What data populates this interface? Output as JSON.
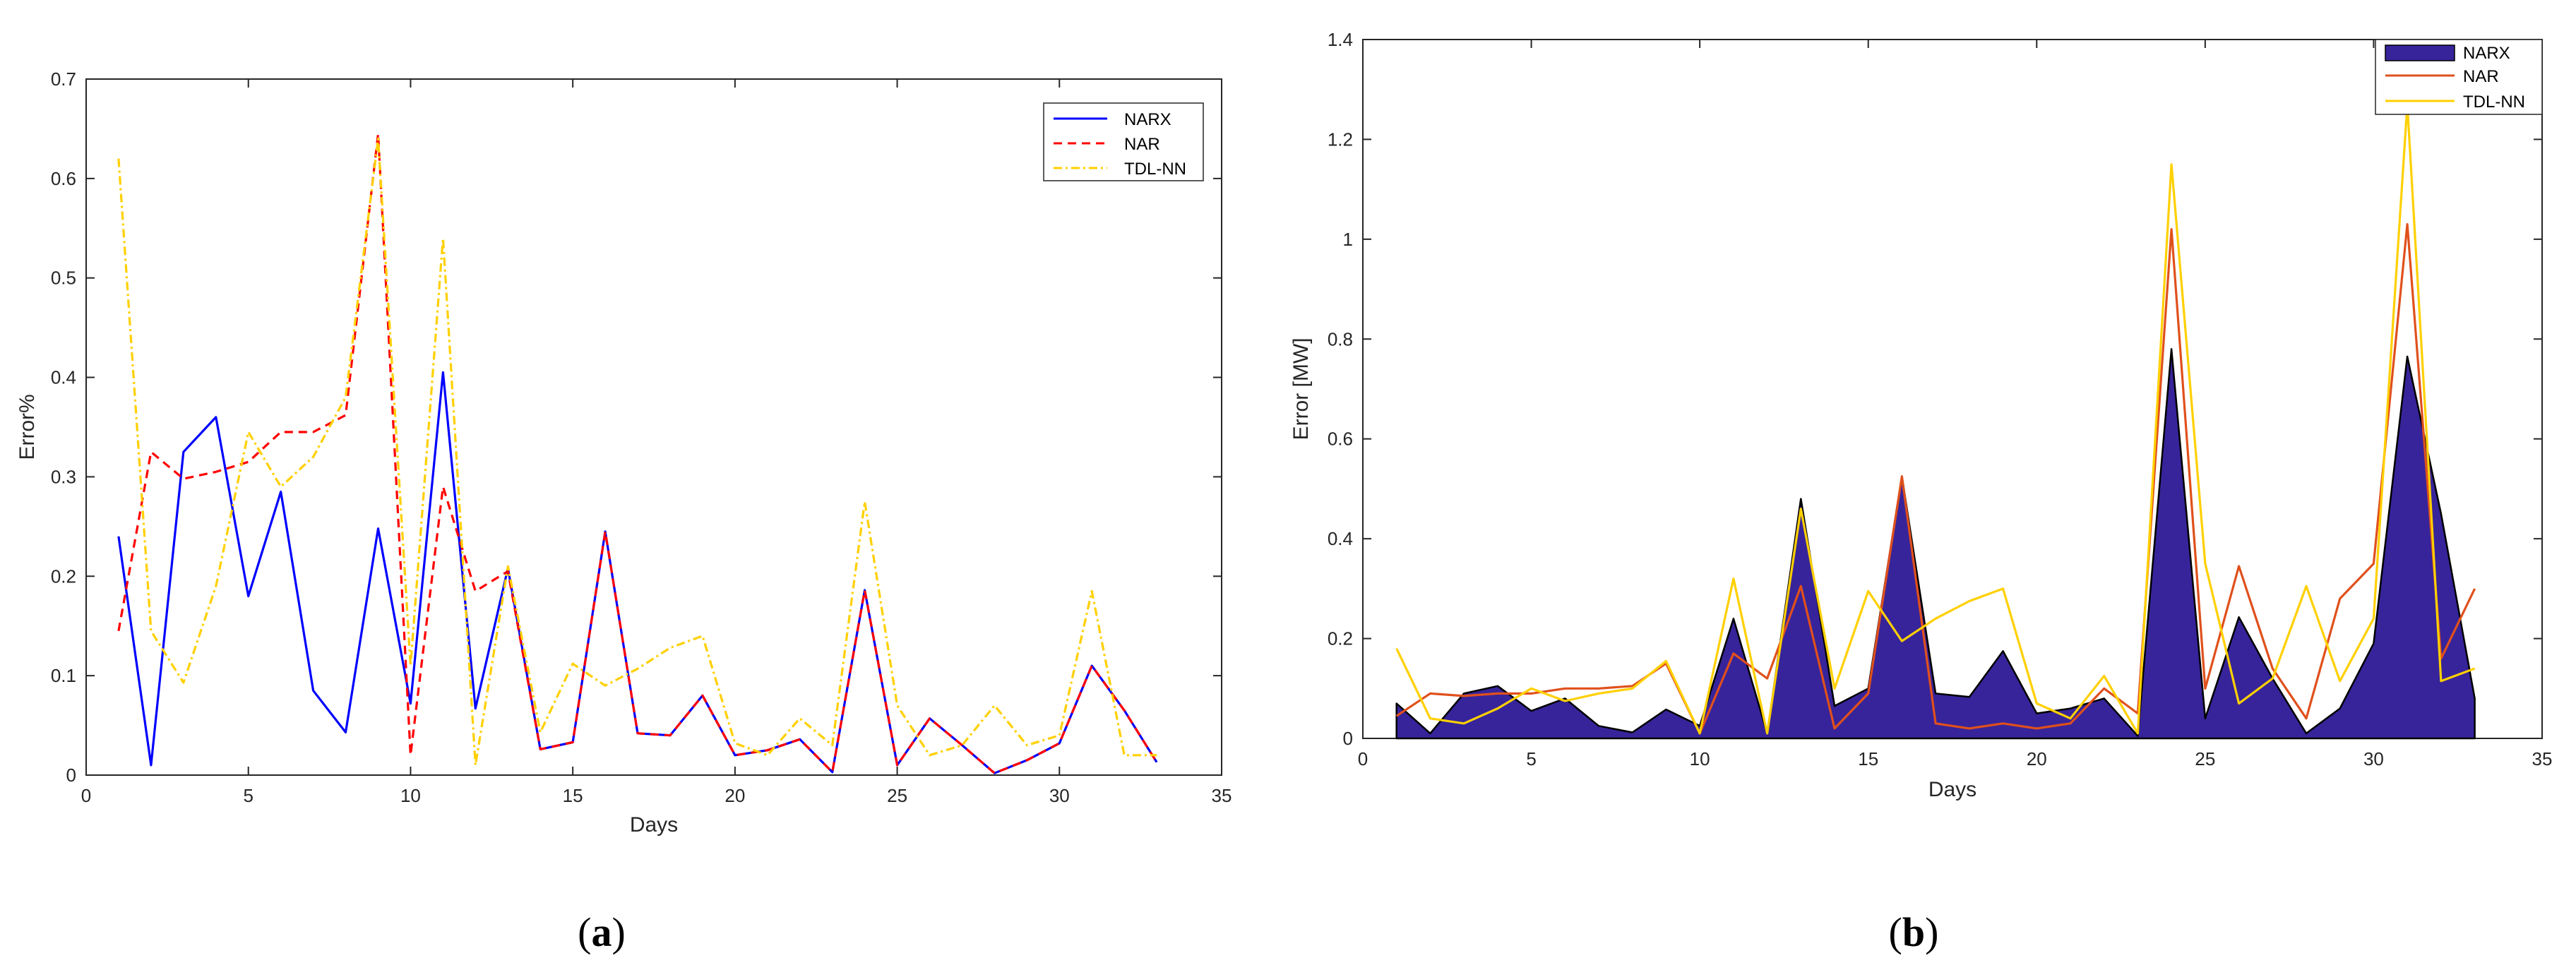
{
  "colors": {
    "narx_a": "#0000ff",
    "nar_a": "#ff0000",
    "tdl_a": "#ffd000",
    "narx_b_fill": "#37249a",
    "nar_b": "#e0501c",
    "tdl_b": "#ffd000"
  },
  "chart_data": [
    {
      "type": "line",
      "panel_label": "a",
      "title": "",
      "xlabel": "Days",
      "ylabel": "Error%",
      "xlim": [
        0,
        35
      ],
      "ylim": [
        0,
        0.7
      ],
      "xticks": [
        0,
        5,
        10,
        15,
        20,
        25,
        30,
        35
      ],
      "xtick_labels": [
        "0",
        "5",
        "10",
        "15",
        "20",
        "25",
        "30",
        "35"
      ],
      "yticks": [
        0,
        0.1,
        0.2,
        0.3,
        0.4,
        0.5,
        0.6,
        0.7
      ],
      "ytick_labels": [
        "0",
        "0.1",
        "0.2",
        "0.3",
        "0.4",
        "0.5",
        "0.6",
        "0.7"
      ],
      "grid": false,
      "legend_position": "top-right",
      "x": [
        1,
        2,
        3,
        4,
        5,
        6,
        7,
        8,
        9,
        10,
        11,
        12,
        13,
        14,
        15,
        16,
        17,
        18,
        19,
        20,
        21,
        22,
        23,
        24,
        25,
        26,
        27,
        28,
        29,
        30,
        31,
        32,
        33
      ],
      "series": [
        {
          "name": "NARX",
          "style": "solid",
          "color": "#0000ff",
          "values": [
            0.24,
            0.01,
            0.325,
            0.36,
            0.18,
            0.285,
            0.085,
            0.043,
            0.248,
            0.072,
            0.405,
            0.067,
            0.208,
            0.026,
            0.033,
            0.245,
            0.042,
            0.04,
            0.08,
            0.02,
            0.025,
            0.036,
            0.003,
            0.186,
            0.01,
            0.057,
            0.03,
            0.002,
            0.015,
            0.032,
            0.11,
            0.065,
            0.013
          ]
        },
        {
          "name": "NAR",
          "style": "dashed",
          "color": "#ff0000",
          "values": [
            0.145,
            0.325,
            0.298,
            0.305,
            0.315,
            0.345,
            0.345,
            0.362,
            0.645,
            0.02,
            0.29,
            0.185,
            0.205,
            0.026,
            0.033,
            0.245,
            0.042,
            0.04,
            0.08,
            0.02,
            0.025,
            0.036,
            0.003,
            0.186,
            0.01,
            0.057,
            0.03,
            0.002,
            0.015,
            0.032,
            0.11,
            0.065,
            0.013
          ]
        },
        {
          "name": "TDL-NN",
          "style": "dashdot",
          "color": "#ffd000",
          "values": [
            0.62,
            0.145,
            0.093,
            0.19,
            0.345,
            0.29,
            0.32,
            0.38,
            0.64,
            0.11,
            0.54,
            0.01,
            0.21,
            0.043,
            0.112,
            0.09,
            0.107,
            0.128,
            0.14,
            0.032,
            0.02,
            0.057,
            0.03,
            0.275,
            0.07,
            0.02,
            0.03,
            0.07,
            0.03,
            0.04,
            0.185,
            0.02,
            0.02
          ]
        }
      ]
    },
    {
      "type": "area",
      "panel_label": "b",
      "title": "",
      "xlabel": "Days",
      "ylabel": "Error [MW]",
      "xlim": [
        0,
        35
      ],
      "ylim": [
        0,
        1.4
      ],
      "xticks": [
        0,
        5,
        10,
        15,
        20,
        25,
        30,
        35
      ],
      "xtick_labels": [
        "0",
        "5",
        "10",
        "15",
        "20",
        "25",
        "30",
        "35"
      ],
      "yticks": [
        0,
        0.2,
        0.4,
        0.6,
        0.8,
        1,
        1.2,
        1.4
      ],
      "ytick_labels": [
        "0",
        "0.2",
        "0.4",
        "0.6",
        "0.8",
        "1",
        "1.2",
        "1.4"
      ],
      "grid": false,
      "legend_position": "top-right",
      "x": [
        1,
        2,
        3,
        4,
        5,
        6,
        7,
        8,
        9,
        10,
        11,
        12,
        13,
        14,
        15,
        16,
        17,
        18,
        19,
        20,
        21,
        22,
        23,
        24,
        25,
        26,
        27,
        28,
        29,
        30,
        31,
        32,
        33
      ],
      "series": [
        {
          "name": "NARX",
          "style": "area",
          "color": "#37249a",
          "values": [
            0.07,
            0.01,
            0.09,
            0.105,
            0.055,
            0.08,
            0.025,
            0.012,
            0.058,
            0.025,
            0.24,
            0.01,
            0.48,
            0.065,
            0.1,
            0.525,
            0.09,
            0.083,
            0.175,
            0.05,
            0.06,
            0.08,
            0.005,
            0.78,
            0.04,
            0.243,
            0.12,
            0.01,
            0.06,
            0.19,
            0.765,
            0.45,
            0.08
          ]
        },
        {
          "name": "NAR",
          "style": "solid",
          "color": "#e0501c",
          "values": [
            0.045,
            0.09,
            0.085,
            0.09,
            0.09,
            0.1,
            0.1,
            0.105,
            0.15,
            0.01,
            0.17,
            0.12,
            0.305,
            0.02,
            0.09,
            0.525,
            0.03,
            0.02,
            0.03,
            0.02,
            0.03,
            0.1,
            0.05,
            1.02,
            0.1,
            0.345,
            0.14,
            0.04,
            0.28,
            0.35,
            1.03,
            0.16,
            0.3
          ]
        },
        {
          "name": "TDL-NN",
          "style": "solid",
          "color": "#ffd000",
          "values": [
            0.18,
            0.04,
            0.03,
            0.06,
            0.1,
            0.075,
            0.09,
            0.1,
            0.155,
            0.01,
            0.32,
            0.01,
            0.46,
            0.1,
            0.295,
            0.195,
            0.24,
            0.275,
            0.3,
            0.07,
            0.04,
            0.125,
            0.01,
            1.15,
            0.35,
            0.07,
            0.12,
            0.305,
            0.115,
            0.24,
            1.27,
            0.115,
            0.14
          ]
        }
      ]
    }
  ]
}
